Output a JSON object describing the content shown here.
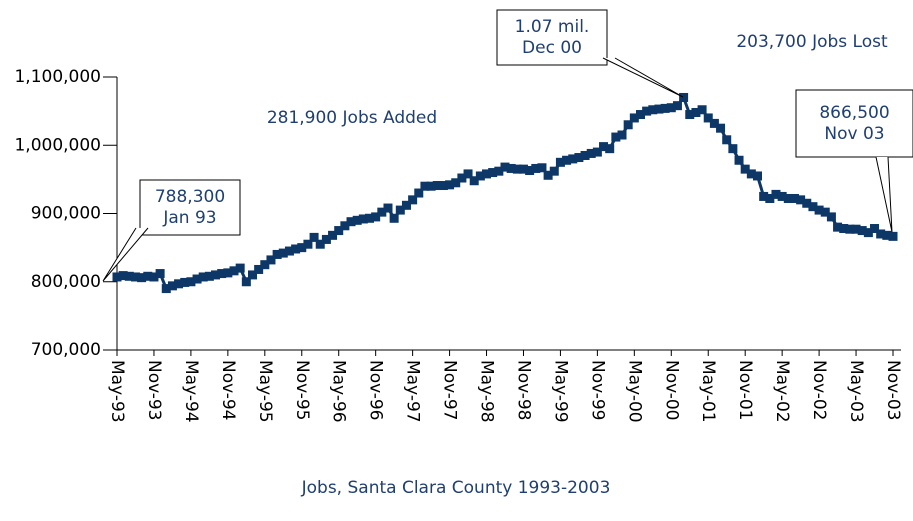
{
  "chart_data": {
    "type": "line",
    "title": "Jobs, Santa Clara County 1993-2003",
    "annotations": [
      "281,900 Jobs Added",
      "203,700 Jobs Lost"
    ],
    "callouts": [
      [
        "788,300",
        "Jan 93"
      ],
      [
        "1.07 mil.",
        "Dec 00"
      ],
      [
        "866,500",
        "Nov 03"
      ]
    ],
    "categories": [
      "May-93",
      null,
      null,
      null,
      null,
      null,
      "Nov-93",
      null,
      null,
      null,
      null,
      null,
      "May-94",
      null,
      null,
      null,
      null,
      null,
      "Nov-94",
      null,
      null,
      null,
      null,
      null,
      "May-95",
      null,
      null,
      null,
      null,
      null,
      "Nov-95",
      null,
      null,
      null,
      null,
      null,
      "May-96",
      null,
      null,
      null,
      null,
      null,
      "Nov-96",
      null,
      null,
      null,
      null,
      null,
      "May-97",
      null,
      null,
      null,
      null,
      null,
      "Nov-97",
      null,
      null,
      null,
      null,
      null,
      "May-98",
      null,
      null,
      null,
      null,
      null,
      "Nov-98",
      null,
      null,
      null,
      null,
      null,
      "May-99",
      null,
      null,
      null,
      null,
      null,
      "Nov-99",
      null,
      null,
      null,
      null,
      null,
      "May-00",
      null,
      null,
      null,
      null,
      null,
      "Nov-00",
      null,
      null,
      null,
      null,
      null,
      "May-01",
      null,
      null,
      null,
      null,
      null,
      "Nov-01",
      null,
      null,
      null,
      null,
      null,
      "May-02",
      null,
      null,
      null,
      null,
      null,
      "Nov-02",
      null,
      null,
      null,
      null,
      null,
      "May-03",
      null,
      null,
      null,
      null,
      null,
      "Nov-03"
    ],
    "series": [
      {
        "name": "Jobs",
        "color": "#0d3766",
        "values": [
          807000,
          809000,
          808000,
          807000,
          806000,
          808000,
          807000,
          812000,
          790000,
          794000,
          797000,
          799000,
          800000,
          804000,
          807000,
          808000,
          810000,
          812000,
          813000,
          816000,
          820000,
          800000,
          810000,
          818000,
          825000,
          832000,
          840000,
          842000,
          845000,
          848000,
          850000,
          855000,
          865000,
          855000,
          862000,
          868000,
          875000,
          882000,
          888000,
          890000,
          892000,
          893000,
          895000,
          902000,
          908000,
          893000,
          905000,
          912000,
          920000,
          930000,
          940000,
          940000,
          941000,
          941000,
          942000,
          945000,
          952000,
          958000,
          948000,
          955000,
          958000,
          960000,
          962000,
          968000,
          966000,
          965000,
          965000,
          963000,
          966000,
          967000,
          956000,
          962000,
          975000,
          978000,
          980000,
          982000,
          985000,
          988000,
          990000,
          998000,
          995000,
          1012000,
          1015000,
          1030000,
          1040000,
          1045000,
          1050000,
          1052000,
          1053000,
          1054000,
          1055000,
          1058000,
          1070000,
          1045000,
          1048000,
          1052000,
          1040000,
          1032000,
          1025000,
          1008000,
          995000,
          978000,
          965000,
          958000,
          955000,
          925000,
          922000,
          928000,
          925000,
          922000,
          922000,
          920000,
          915000,
          910000,
          905000,
          902000,
          895000,
          880000,
          878000,
          877000,
          877000,
          875000,
          872000,
          878000,
          870000,
          868000,
          866500
        ]
      }
    ],
    "ylim": [
      700000,
      1100000
    ],
    "yticks": [
      {
        "value": 700000,
        "label": "700,000"
      },
      {
        "value": 800000,
        "label": "800,000"
      },
      {
        "value": 900000,
        "label": "900,000"
      },
      {
        "value": 1000000,
        "label": "1,000,000"
      },
      {
        "value": 1100000,
        "label": "1,100,000"
      }
    ],
    "grid": false
  }
}
